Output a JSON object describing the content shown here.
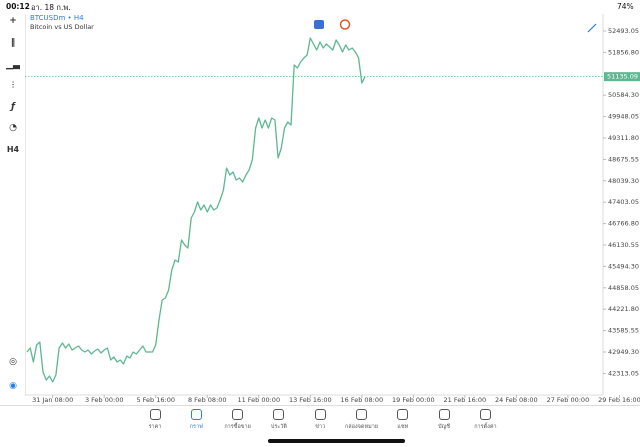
{
  "status_bar": {
    "time": "00:12",
    "date": "อา. 18 ก.พ.",
    "battery": "74%"
  },
  "toolbar": {
    "timeframe": "H4"
  },
  "chart_data": {
    "type": "line",
    "title": "BTCUSDm • H4",
    "subtitle": "Bitcoin vs US Dollar",
    "color": "#5cb891",
    "grid": false,
    "current_price": 51135.09,
    "values": [
      42950,
      43069,
      42652,
      43158,
      43247,
      42355,
      42117,
      42236,
      42058,
      42266,
      43069,
      43217,
      43069,
      43188,
      43009,
      43069,
      43128,
      43009,
      42950,
      43009,
      42890,
      42979,
      43039,
      42920,
      43009,
      43069,
      42712,
      42801,
      42652,
      42712,
      42593,
      42831,
      42771,
      42950,
      42890,
      43009,
      43128,
      42950,
      42950,
      42950,
      43158,
      43901,
      44496,
      44555,
      44793,
      45388,
      45685,
      45625,
      46279,
      46131,
      46042,
      46933,
      47112,
      47409,
      47171,
      47320,
      47112,
      47320,
      47171,
      47231,
      47469,
      47766,
      48420,
      48212,
      48301,
      48063,
      48123,
      48004,
      48212,
      48361,
      48658,
      49609,
      49906,
      49609,
      49847,
      49609,
      49906,
      49847,
      48717,
      49015,
      49609,
      49788,
      49698,
      51482,
      51393,
      51571,
      51690,
      51779,
      52285,
      52107,
      51928,
      52166,
      51988,
      52107,
      52017,
      51928,
      52225,
      52077,
      51869,
      52077,
      51928,
      51988,
      51869,
      51690,
      50947,
      51135.09
    ],
    "xlim": [
      -0.6,
      178.9
    ],
    "xticks": [
      {
        "value": 8,
        "label": "31 Jan 08:00"
      },
      {
        "value": 24,
        "label": "3 Feb 00:00"
      },
      {
        "value": 40,
        "label": "5 Feb 16:00"
      },
      {
        "value": 56,
        "label": "8 Feb 08:00"
      },
      {
        "value": 72,
        "label": "11 Feb 00:00"
      },
      {
        "value": 88,
        "label": "13 Feb 16:00"
      },
      {
        "value": 104,
        "label": "16 Feb 08:00"
      },
      {
        "value": 120,
        "label": "19 Feb 00:00"
      },
      {
        "value": 136,
        "label": "21 Feb 16:00"
      },
      {
        "value": 152,
        "label": "24 Feb 08:00"
      },
      {
        "value": 168,
        "label": "27 Feb 00:00"
      },
      {
        "value": 184,
        "label": "29 Feb 16:00"
      }
    ],
    "ylim": [
      41671,
      52998
    ],
    "yticks": [
      52493.05,
      {
        "value": 51856.8,
        "label": "51856.80"
      },
      {
        "value": 50584.3,
        "label": "50584.30"
      },
      49948.05,
      {
        "value": 49311.8,
        "label": "49311.80"
      },
      48675.55,
      {
        "value": 48039.3,
        "label": "48039.30"
      },
      47403.05,
      {
        "value": 46766.8,
        "label": "46766.80"
      },
      46130.55,
      {
        "value": 45494.3,
        "label": "45494.30"
      },
      44858.05,
      {
        "value": 44221.8,
        "label": "44221.80"
      },
      43585.55,
      {
        "value": 42949.3,
        "label": "42949.30"
      },
      42313.05
    ]
  },
  "tab_bar": {
    "tabs": [
      "ราคา",
      "กราฟ",
      "การซื้อขาย",
      "ประวัติ",
      "ข่าว",
      "กล่องจดหมาย",
      "แชท",
      "บัญชี",
      "การตั้งค่า"
    ],
    "active": "กราฟ"
  }
}
